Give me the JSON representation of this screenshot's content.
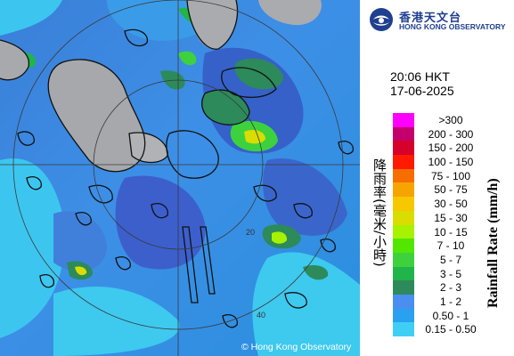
{
  "header": {
    "logo_zh": "香港天文台",
    "logo_en": "HONG KONG OBSERVATORY",
    "time": "20:06 HKT",
    "date": "17-06-2025"
  },
  "legend": {
    "title_zh": "降雨率(毫米/小時)",
    "title_en": "Rainfall Rate (mm/h)",
    "items": [
      {
        "label": ">300",
        "color": "#ff00ff"
      },
      {
        "label": "200 - 300",
        "color": "#c4006e"
      },
      {
        "label": "150 - 200",
        "color": "#d6002a"
      },
      {
        "label": "100 - 150",
        "color": "#ff1a00"
      },
      {
        "label": "75 - 100",
        "color": "#f76d00"
      },
      {
        "label": "50 - 75",
        "color": "#f7a400"
      },
      {
        "label": "30 - 50",
        "color": "#f7c800"
      },
      {
        "label": "15 - 30",
        "color": "#d9dd00"
      },
      {
        "label": "10 - 15",
        "color": "#a6f200"
      },
      {
        "label": "7 - 10",
        "color": "#53e600"
      },
      {
        "label": "5 - 7",
        "color": "#3dd23d"
      },
      {
        "label": "3 - 5",
        "color": "#20b44a"
      },
      {
        "label": "2 - 3",
        "color": "#2d8a5a"
      },
      {
        "label": "1 - 2",
        "color": "#4a8ef0"
      },
      {
        "label": "0.50 - 1",
        "color": "#2aa0f0"
      },
      {
        "label": "0.15 - 0.50",
        "color": "#3fcff5"
      }
    ]
  },
  "map": {
    "copyright": "© Hong Kong Observatory",
    "range_labels": [
      "20",
      "40"
    ]
  }
}
